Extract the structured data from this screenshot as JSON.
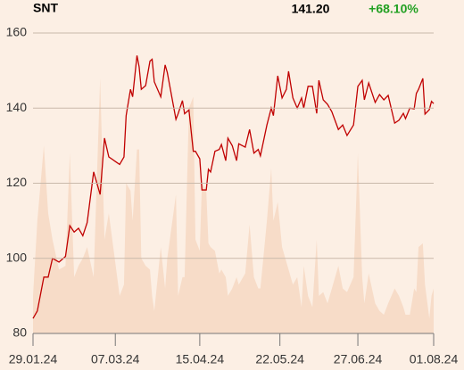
{
  "header": {
    "symbol": "SNT",
    "last": "141.20",
    "change": "+68.10%"
  },
  "chart_data": {
    "type": "line",
    "grid": true,
    "x": [
      "2024-01-29",
      "2024-01-31",
      "2024-02-03",
      "2024-02-05",
      "2024-02-07",
      "2024-02-10",
      "2024-02-13",
      "2024-02-15",
      "2024-02-17",
      "2024-02-19",
      "2024-02-21",
      "2024-02-23",
      "2024-02-26",
      "2024-02-29",
      "2024-03-02",
      "2024-03-04",
      "2024-03-09",
      "2024-03-11",
      "2024-03-12",
      "2024-03-14",
      "2024-03-15",
      "2024-03-17",
      "2024-03-18",
      "2024-03-19",
      "2024-03-21",
      "2024-03-23",
      "2024-03-24",
      "2024-03-25",
      "2024-03-28",
      "2024-03-30",
      "2024-03-31",
      "2024-04-04",
      "2024-04-05",
      "2024-04-07",
      "2024-04-08",
      "2024-04-10",
      "2024-04-12",
      "2024-04-13",
      "2024-04-15",
      "2024-04-16",
      "2024-04-18",
      "2024-04-19",
      "2024-04-20",
      "2024-04-22",
      "2024-04-24",
      "2024-04-25",
      "2024-04-27",
      "2024-04-28",
      "2024-04-30",
      "2024-05-02",
      "2024-05-03",
      "2024-05-06",
      "2024-05-08",
      "2024-05-10",
      "2024-05-12",
      "2024-05-13",
      "2024-05-16",
      "2024-05-18",
      "2024-05-19",
      "2024-05-21",
      "2024-05-23",
      "2024-05-25",
      "2024-05-26",
      "2024-05-28",
      "2024-05-30",
      "2024-06-01",
      "2024-06-02",
      "2024-06-04",
      "2024-06-06",
      "2024-06-08",
      "2024-06-09",
      "2024-06-11",
      "2024-06-13",
      "2024-06-15",
      "2024-06-18",
      "2024-06-20",
      "2024-06-22",
      "2024-06-25",
      "2024-06-27",
      "2024-06-29",
      "2024-06-30",
      "2024-07-02",
      "2024-07-05",
      "2024-07-07",
      "2024-07-09",
      "2024-07-11",
      "2024-07-14",
      "2024-07-16",
      "2024-07-18",
      "2024-07-19",
      "2024-07-21",
      "2024-07-23",
      "2024-07-24",
      "2024-07-25",
      "2024-07-27",
      "2024-07-28",
      "2024-07-30",
      "2024-07-31",
      "2024-08-01"
    ],
    "series": [
      {
        "color": "#c00000",
        "values": [
          84,
          86,
          95,
          95,
          100,
          99,
          100.5,
          108.7,
          107,
          108,
          106,
          109.5,
          123,
          117,
          132,
          127,
          125,
          127,
          138,
          145,
          143,
          154,
          151,
          145,
          146,
          152.5,
          153,
          147,
          143,
          151.5,
          149.5,
          137,
          138.5,
          142,
          138.5,
          139.5,
          128.5,
          128.5,
          126.5,
          118.2,
          118.2,
          123.7,
          123,
          128.5,
          129,
          130.3,
          126,
          132,
          130,
          126,
          130.5,
          129.6,
          134.3,
          128,
          129,
          127.3,
          135.5,
          140,
          138,
          148.6,
          142.7,
          145,
          149.8,
          142.7,
          140,
          142.7,
          140,
          145.8,
          145.8,
          138.6,
          147.4,
          142.2,
          141,
          139,
          134.3,
          135.5,
          132.7,
          135.5,
          145.8,
          147.4,
          142.2,
          146.7,
          141.5,
          143.6,
          142.2,
          143.4,
          136,
          136.8,
          138.6,
          137.2,
          140,
          139.8,
          143.9,
          145,
          147.9,
          138.4,
          139.6,
          141.8,
          141.2
        ]
      },
      {
        "color": "#f7dcc8",
        "values": [
          90,
          110,
          130,
          112,
          105,
          97,
          98,
          128,
          95,
          98,
          100,
          103,
          95,
          148,
          105,
          112,
          90,
          93,
          120,
          118,
          110,
          129,
          129,
          100,
          98,
          97,
          90,
          86,
          103,
          92,
          100,
          117,
          90,
          95,
          95,
          140,
          143,
          105,
          102,
          120,
          118,
          104,
          103,
          102,
          96,
          97,
          95,
          90,
          92,
          95,
          93,
          96,
          109,
          95,
          92,
          92,
          110,
          124,
          110,
          115,
          103,
          99,
          97,
          93,
          95,
          87,
          98,
          90,
          87,
          105,
          90,
          91,
          88,
          92,
          98,
          92,
          91,
          95,
          128,
          95,
          88,
          96,
          88,
          86,
          85,
          88,
          92,
          90,
          87,
          85,
          85,
          92,
          91,
          103,
          104,
          93,
          84,
          90,
          92
        ]
      }
    ],
    "xlim": [
      "2024-01-29",
      "2024-08-01"
    ],
    "xticks": [
      {
        "value": "2024-01-29",
        "label": "29.01.24"
      },
      {
        "value": "2024-03-07",
        "label": "07.03.24"
      },
      {
        "value": "2024-04-15",
        "label": "15.04.24"
      },
      {
        "value": "2024-05-22",
        "label": "22.05.24"
      },
      {
        "value": "2024-06-27",
        "label": "27.06.24"
      },
      {
        "value": "2024-08-01",
        "label": "01.08.24"
      }
    ],
    "ylim": [
      80,
      160
    ],
    "yticks": [
      80,
      100,
      120,
      140,
      160
    ]
  }
}
